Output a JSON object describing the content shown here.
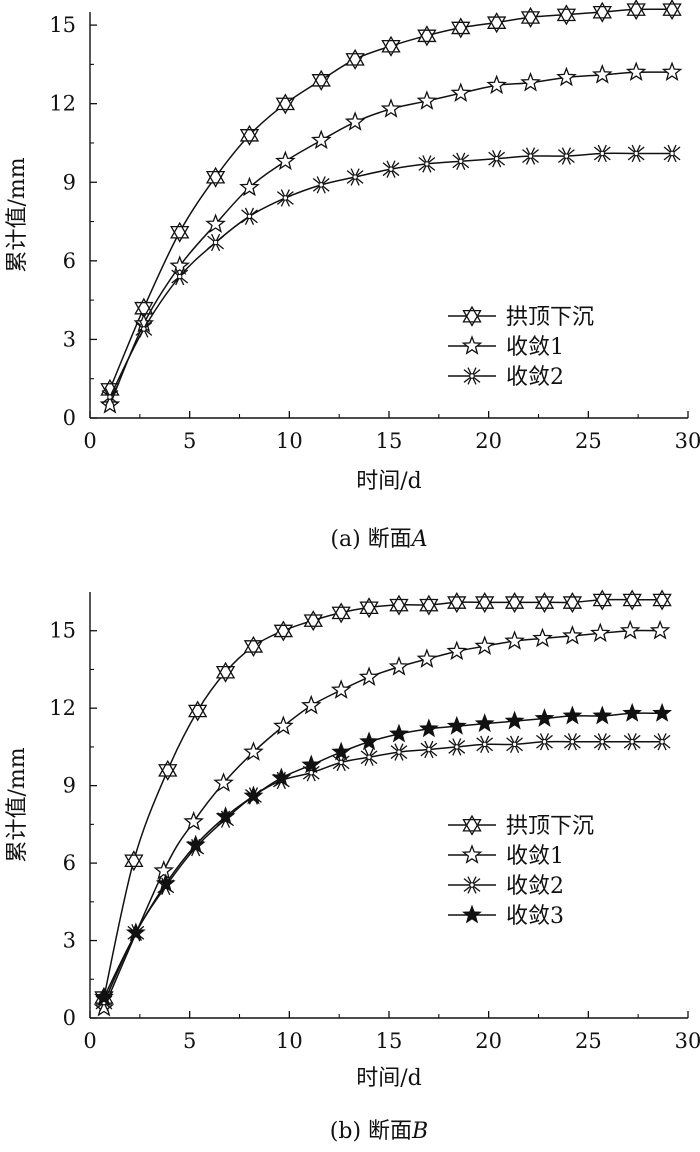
{
  "chart_data": [
    {
      "type": "line",
      "caption": "(a) 断面",
      "caption_var": "A",
      "xlabel": "时间/d",
      "ylabel": "累计值/mm",
      "xlim": [
        0,
        30
      ],
      "ylim": [
        0,
        15.5
      ],
      "xticks": [
        0,
        5,
        10,
        15,
        20,
        25,
        30
      ],
      "yticks": [
        0,
        3,
        6,
        9,
        12,
        15
      ],
      "grid": false,
      "legend": "center-right",
      "series": [
        {
          "name": "拱顶下沉",
          "marker": "triangle-star",
          "x": [
            1,
            2.7,
            4.5,
            6.3,
            8.0,
            9.8,
            11.6,
            13.3,
            15.1,
            16.9,
            18.6,
            20.4,
            22.1,
            23.9,
            25.7,
            27.4,
            29.2
          ],
          "y": [
            1.1,
            4.2,
            7.1,
            9.2,
            10.8,
            12.0,
            12.9,
            13.7,
            14.2,
            14.6,
            14.9,
            15.1,
            15.3,
            15.4,
            15.5,
            15.6,
            15.6
          ]
        },
        {
          "name": "收敛1",
          "marker": "star-open",
          "x": [
            1,
            2.7,
            4.5,
            6.3,
            8.0,
            9.8,
            11.6,
            13.3,
            15.1,
            16.9,
            18.6,
            20.4,
            22.1,
            23.9,
            25.7,
            27.4,
            29.2
          ],
          "y": [
            0.5,
            3.6,
            5.8,
            7.4,
            8.8,
            9.8,
            10.6,
            11.3,
            11.8,
            12.1,
            12.4,
            12.7,
            12.8,
            13.0,
            13.1,
            13.2,
            13.2
          ]
        },
        {
          "name": "收敛2",
          "marker": "asterisk",
          "x": [
            1,
            2.7,
            4.5,
            6.3,
            8.0,
            9.8,
            11.6,
            13.3,
            15.1,
            16.9,
            18.6,
            20.4,
            22.1,
            23.9,
            25.7,
            27.4,
            29.2
          ],
          "y": [
            0.8,
            3.4,
            5.4,
            6.7,
            7.7,
            8.4,
            8.9,
            9.2,
            9.5,
            9.7,
            9.8,
            9.9,
            10.0,
            10.0,
            10.1,
            10.1,
            10.1
          ]
        }
      ]
    },
    {
      "type": "line",
      "caption": "(b) 断面",
      "caption_var": "B",
      "xlabel": "时间/d",
      "ylabel": "累计值/mm",
      "xlim": [
        0,
        30
      ],
      "ylim": [
        0,
        16.5
      ],
      "xticks": [
        0,
        5,
        10,
        15,
        20,
        25,
        30
      ],
      "yticks": [
        0,
        3,
        6,
        9,
        12,
        15
      ],
      "grid": false,
      "legend": "center-right",
      "series": [
        {
          "name": "拱顶下沉",
          "marker": "triangle-star",
          "x": [
            0.7,
            2.2,
            3.9,
            5.4,
            6.8,
            8.2,
            9.7,
            11.2,
            12.6,
            14.0,
            15.5,
            17.0,
            18.4,
            19.8,
            21.3,
            22.8,
            24.2,
            25.7,
            27.2,
            28.7
          ],
          "y": [
            0.8,
            6.1,
            9.6,
            11.9,
            13.4,
            14.4,
            15.0,
            15.4,
            15.7,
            15.9,
            16.0,
            16.0,
            16.1,
            16.1,
            16.1,
            16.1,
            16.1,
            16.2,
            16.2,
            16.2
          ]
        },
        {
          "name": "收敛1",
          "marker": "star-open",
          "x": [
            0.7,
            3.7,
            5.2,
            6.7,
            8.2,
            9.7,
            11.1,
            12.6,
            14.0,
            15.5,
            16.9,
            18.4,
            19.8,
            21.3,
            22.7,
            24.2,
            25.6,
            27.1,
            28.6
          ],
          "y": [
            0.4,
            5.7,
            7.6,
            9.1,
            10.3,
            11.3,
            12.1,
            12.7,
            13.2,
            13.6,
            13.9,
            14.2,
            14.4,
            14.6,
            14.7,
            14.8,
            14.9,
            15.0,
            15.0
          ]
        },
        {
          "name": "收敛2",
          "marker": "asterisk",
          "x": [
            0.7,
            2.3,
            3.8,
            5.3,
            6.8,
            8.2,
            9.6,
            11.1,
            12.6,
            14.0,
            15.5,
            17.0,
            18.4,
            19.8,
            21.3,
            22.8,
            24.2,
            25.7,
            27.2,
            28.7
          ],
          "y": [
            0.6,
            3.3,
            5.1,
            6.6,
            7.7,
            8.6,
            9.2,
            9.5,
            9.9,
            10.1,
            10.3,
            10.4,
            10.5,
            10.6,
            10.6,
            10.7,
            10.7,
            10.7,
            10.7,
            10.7
          ]
        },
        {
          "name": "收敛3",
          "marker": "star-filled",
          "x": [
            0.7,
            2.3,
            3.8,
            5.3,
            6.8,
            8.2,
            9.6,
            11.1,
            12.6,
            14.0,
            15.5,
            17.0,
            18.4,
            19.8,
            21.3,
            22.8,
            24.2,
            25.7,
            27.2,
            28.7
          ],
          "y": [
            0.8,
            3.3,
            5.2,
            6.7,
            7.8,
            8.6,
            9.3,
            9.8,
            10.3,
            10.7,
            11.0,
            11.2,
            11.3,
            11.4,
            11.5,
            11.6,
            11.7,
            11.7,
            11.8,
            11.8
          ]
        }
      ]
    }
  ]
}
